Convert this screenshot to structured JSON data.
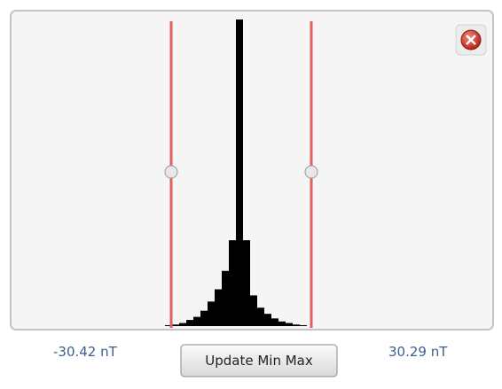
{
  "histogram": {
    "type": "bar",
    "values": [
      0.3,
      0.5,
      1,
      2,
      3,
      5,
      8,
      12,
      18,
      28,
      100,
      28,
      10,
      6,
      4,
      2.5,
      1.5,
      1,
      0.5,
      0.3
    ]
  },
  "min_label": "-30.42 nT",
  "max_label": "30.29 nT",
  "button": "Update Min Max"
}
